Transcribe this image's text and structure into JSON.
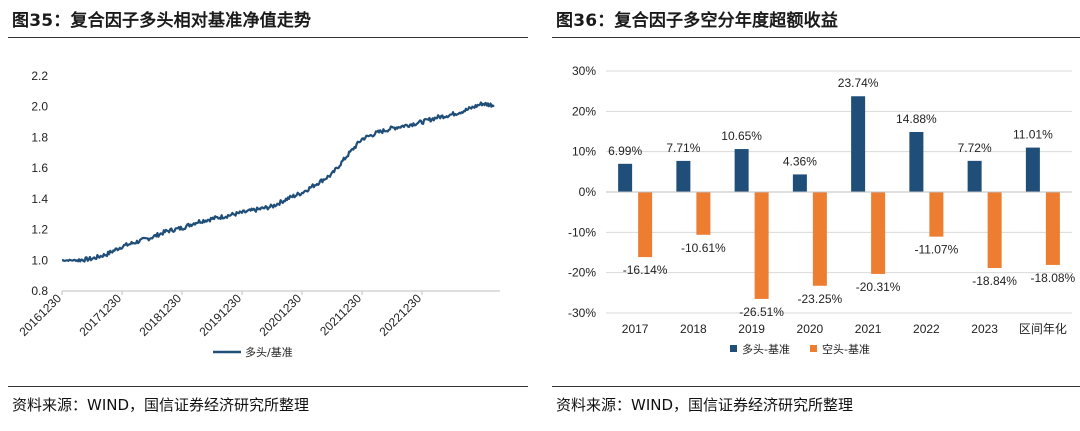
{
  "left": {
    "title": "图35：复合因子多头相对基准净值走势",
    "source": "资料来源：WIND，国信证券经济研究所整理",
    "legend": "多头/基准",
    "chart_data": {
      "type": "line",
      "x_tick_labels": [
        "20161230",
        "20171230",
        "20181230",
        "20191230",
        "20201230",
        "20211230",
        "20221230"
      ],
      "y_ticks": [
        0.8,
        1.0,
        1.2,
        1.4,
        1.6,
        1.8,
        2.0,
        2.2
      ],
      "ylim": [
        0.8,
        2.2
      ],
      "series": [
        {
          "name": "多头/基准",
          "color": "#1f4e79",
          "x": [
            2017.0,
            2017.25,
            2017.5,
            2017.75,
            2018.0,
            2018.25,
            2018.5,
            2018.75,
            2019.0,
            2019.25,
            2019.5,
            2019.75,
            2020.0,
            2020.25,
            2020.5,
            2020.75,
            2021.0,
            2021.25,
            2021.5,
            2021.75,
            2022.0,
            2022.25,
            2022.5,
            2022.75,
            2023.0,
            2023.25,
            2023.5,
            2023.75,
            2024.0,
            2024.2
          ],
          "values": [
            1.0,
            1.0,
            1.01,
            1.04,
            1.09,
            1.12,
            1.15,
            1.19,
            1.21,
            1.25,
            1.27,
            1.29,
            1.31,
            1.33,
            1.35,
            1.4,
            1.44,
            1.5,
            1.56,
            1.68,
            1.79,
            1.83,
            1.86,
            1.88,
            1.9,
            1.93,
            1.95,
            1.98,
            2.02,
            2.01
          ]
        }
      ],
      "x_range": [
        2017.0,
        2024.3
      ]
    }
  },
  "right": {
    "title": "图36：复合因子多空分年度超额收益",
    "source": "资料来源：WIND，国信证券经济研究所整理",
    "chart_data": {
      "type": "bar",
      "categories": [
        "2017",
        "2018",
        "2019",
        "2020",
        "2021",
        "2022",
        "2023",
        "区间年化"
      ],
      "y_ticks": [
        "30%",
        "20%",
        "10%",
        "0%",
        "-10%",
        "-20%",
        "-30%"
      ],
      "ylim": [
        -30,
        30
      ],
      "series": [
        {
          "name": "多头-基准",
          "color": "#1f4e79",
          "values": [
            6.99,
            7.71,
            10.65,
            4.36,
            23.74,
            14.88,
            7.72,
            11.01
          ],
          "labels": [
            "6.99%",
            "7.71%",
            "10.65%",
            "4.36%",
            "23.74%",
            "14.88%",
            "7.72%",
            "11.01%"
          ]
        },
        {
          "name": "空头-基准",
          "color": "#ed7d31",
          "values": [
            -16.14,
            -10.61,
            -26.51,
            -23.25,
            -20.31,
            -11.07,
            -18.84,
            -18.08
          ],
          "labels": [
            "-16.14%",
            "-10.61%",
            "-26.51%",
            "-23.25%",
            "-20.31%",
            "-11.07%",
            "-18.84%",
            "-18.08%"
          ]
        }
      ],
      "legend_position": "bottom"
    }
  }
}
